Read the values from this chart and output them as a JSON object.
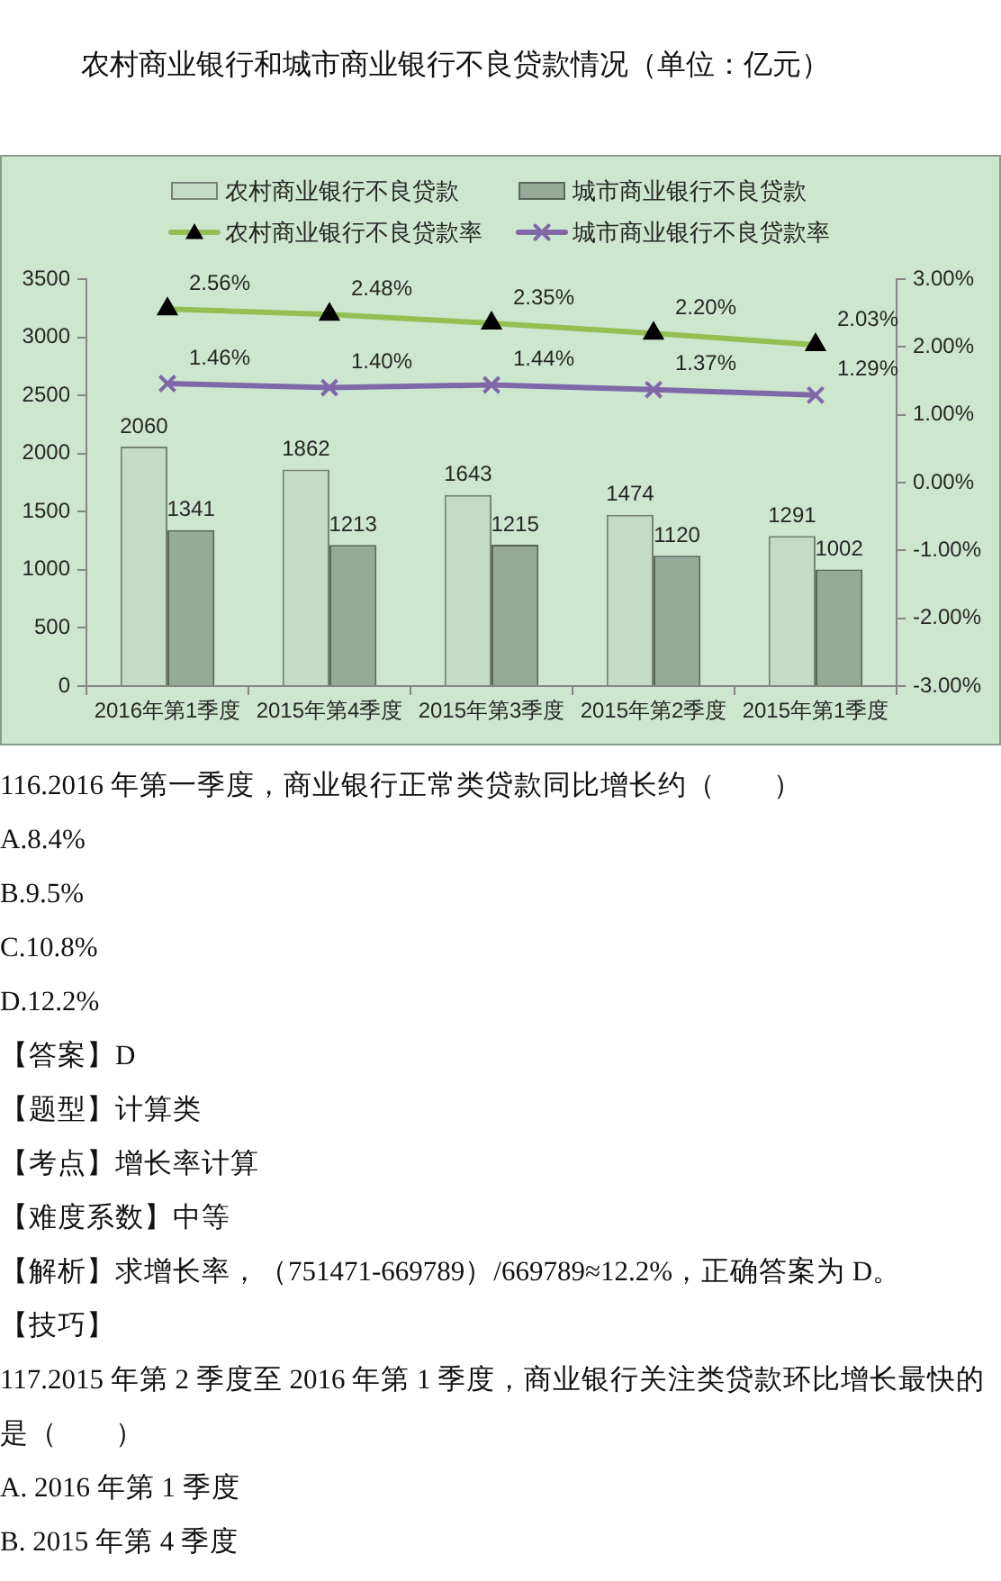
{
  "chart_data": {
    "type": "bar",
    "title": "农村商业银行和城市商业银行不良贷款情况（单位：亿元）",
    "categories": [
      "2016年第1季度",
      "2015年第4季度",
      "2015年第3季度",
      "2015年第2季度",
      "2015年第1季度"
    ],
    "series": [
      {
        "name": "农村商业银行不良贷款",
        "color": "#c4dbc5",
        "values": [
          2060,
          1862,
          1643,
          1474,
          1291
        ],
        "value_labels": [
          "2060",
          "1862",
          "1643",
          "1474",
          "1291"
        ]
      },
      {
        "name": "城市商业银行不良贷款",
        "color": "#95ab98",
        "values": [
          1341,
          1213,
          1215,
          1120,
          1002
        ],
        "value_labels": [
          "1341",
          "1213",
          "1215",
          "1120",
          "1002"
        ]
      },
      {
        "name": "农村商业银行不良贷款率",
        "type": "line",
        "axis": "y2",
        "color": "#93bf53",
        "marker": "triangle",
        "colors": [
          "#000000",
          "#000000",
          "#000000",
          "#000000",
          "#000000"
        ],
        "values": [
          2.56,
          2.48,
          2.35,
          2.2,
          2.03
        ],
        "value_labels": [
          "2.56%",
          "2.48%",
          "2.35%",
          "2.20%",
          "2.03%"
        ]
      },
      {
        "name": "城市商业银行不良贷款率",
        "type": "line",
        "axis": "y2",
        "color": "#7f68a8",
        "marker": "cross",
        "values": [
          1.46,
          1.4,
          1.44,
          1.37,
          1.29
        ],
        "value_labels": [
          "1.46%",
          "1.40%",
          "1.44%",
          "1.37%",
          "1.29%"
        ]
      }
    ],
    "ylim": [
      0,
      3500
    ],
    "yticks": [
      0,
      500,
      1000,
      1500,
      2000,
      2500,
      3000,
      3500
    ],
    "y2lim": [
      -3,
      3
    ],
    "y2ticks": [
      {
        "value": -3,
        "label": "-3.00%"
      },
      {
        "value": -2,
        "label": "-2.00%"
      },
      {
        "value": -1,
        "label": "-1.00%"
      },
      {
        "value": 0,
        "label": "0.00%"
      },
      {
        "value": 1,
        "label": "1.00%"
      },
      {
        "value": 2,
        "label": "2.00%"
      },
      {
        "value": 3,
        "label": "3.00%"
      }
    ],
    "grid": false,
    "legend": "top",
    "annotations": [
      "116.2016 年第一季度，商业银行正常类贷款同比增长约（　　）",
      "A.8.4%",
      "B.9.5%",
      "C.10.8%",
      "D.12.2%",
      "【答案】D",
      "【题型】计算类",
      "【考点】增长率计算",
      "【难度系数】中等",
      "【解析】求增长率，（751471-669789）/669789≈12.2%，正确答案为 D。",
      "【技巧】",
      "117.2015 年第 2 季度至 2016 年第 1 季度，商业银行关注类贷款环比增长最快的是（　　）",
      "A. 2016 年第 1 季度",
      "B. 2015 年第 4 季度"
    ]
  }
}
